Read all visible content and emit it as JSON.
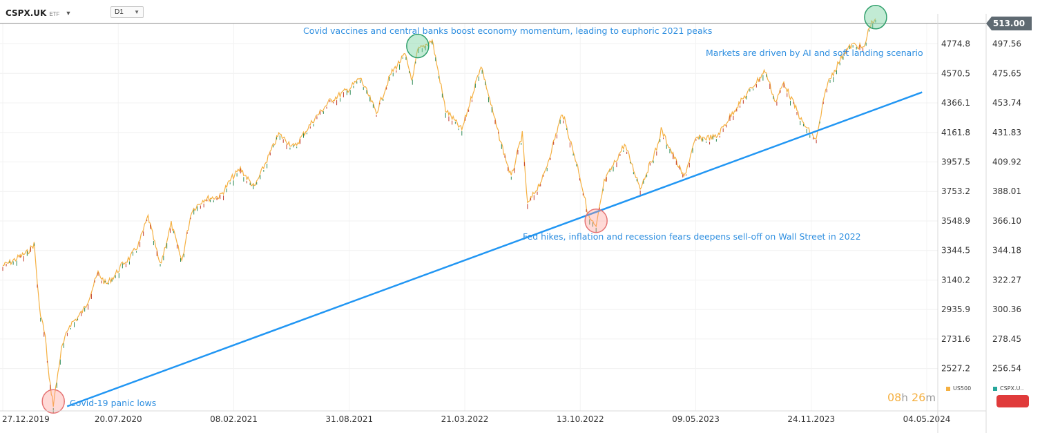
{
  "header": {
    "symbol": "CSPX.UK",
    "symbol_type": "ETF",
    "timeframe": "D1"
  },
  "price_tag": "513.00",
  "timer": {
    "hours": "08",
    "h_unit": "h",
    "minutes": "26",
    "m_unit": "m"
  },
  "legend": [
    {
      "name": "US500",
      "color": "#f5b041"
    },
    {
      "name": "CSPX.U..",
      "color": "#26a69a"
    }
  ],
  "annotations": {
    "peak_2021": "Covid vaccines and central banks boost economy momentum, leading to euphoric 2021 peaks",
    "ai_2023": "Markets are driven by AI and soft landing scenario",
    "selloff_2022": "Fed hikes, inflation and recession fears deepens sell-off on Wall Street in 2022",
    "covid_low": "Covid-19 panic lows"
  },
  "chart_data": {
    "type": "line",
    "x_tick_labels": [
      "27.12.2019",
      "20.07.2020",
      "08.02.2021",
      "31.08.2021",
      "21.03.2022",
      "13.10.2022",
      "09.05.2023",
      "24.11.2023",
      "04.05.2024"
    ],
    "left_axis_ticks": [
      "4774.8",
      "4570.5",
      "4366.1",
      "4161.8",
      "3957.5",
      "3753.2",
      "3548.9",
      "3344.5",
      "3140.2",
      "2935.9",
      "2731.6",
      "2527.2"
    ],
    "right_axis_ticks": [
      "497.56",
      "475.65",
      "453.74",
      "431.83",
      "409.92",
      "388.01",
      "366.10",
      "344.18",
      "322.27",
      "300.36",
      "278.45",
      "256.54"
    ],
    "left_axis_range": [
      2322.9,
      4979.1
    ],
    "series": [
      {
        "name": "US500",
        "color": "#f5b041",
        "points": [
          [
            "2019-12-27",
            3240
          ],
          [
            "2020-01-10",
            3265
          ],
          [
            "2020-01-24",
            3300
          ],
          [
            "2020-02-07",
            3330
          ],
          [
            "2020-02-19",
            3390
          ],
          [
            "2020-02-28",
            2950
          ],
          [
            "2020-03-09",
            2750
          ],
          [
            "2020-03-16",
            2450
          ],
          [
            "2020-03-23",
            2280
          ],
          [
            "2020-04-06",
            2660
          ],
          [
            "2020-04-20",
            2830
          ],
          [
            "2020-05-04",
            2880
          ],
          [
            "2020-05-18",
            2960
          ],
          [
            "2020-06-08",
            3190
          ],
          [
            "2020-06-22",
            3110
          ],
          [
            "2020-07-06",
            3170
          ],
          [
            "2020-07-20",
            3250
          ],
          [
            "2020-08-03",
            3300
          ],
          [
            "2020-08-17",
            3390
          ],
          [
            "2020-09-02",
            3580
          ],
          [
            "2020-09-23",
            3240
          ],
          [
            "2020-10-12",
            3530
          ],
          [
            "2020-10-30",
            3270
          ],
          [
            "2020-11-16",
            3620
          ],
          [
            "2020-12-07",
            3700
          ],
          [
            "2021-01-04",
            3720
          ],
          [
            "2021-01-25",
            3850
          ],
          [
            "2021-02-08",
            3910
          ],
          [
            "2021-03-04",
            3780
          ],
          [
            "2021-03-22",
            3940
          ],
          [
            "2021-04-15",
            4150
          ],
          [
            "2021-05-12",
            4060
          ],
          [
            "2021-06-14",
            4250
          ],
          [
            "2021-07-12",
            4380
          ],
          [
            "2021-08-16",
            4470
          ],
          [
            "2021-09-02",
            4540
          ],
          [
            "2021-09-30",
            4300
          ],
          [
            "2021-10-25",
            4570
          ],
          [
            "2021-11-18",
            4700
          ],
          [
            "2021-12-01",
            4520
          ],
          [
            "2021-12-10",
            4730
          ],
          [
            "2022-01-04",
            4800
          ],
          [
            "2022-01-27",
            4320
          ],
          [
            "2022-02-24",
            4180
          ],
          [
            "2022-03-29",
            4630
          ],
          [
            "2022-04-26",
            4180
          ],
          [
            "2022-05-20",
            3850
          ],
          [
            "2022-06-08",
            4150
          ],
          [
            "2022-06-17",
            3660
          ],
          [
            "2022-07-15",
            3860
          ],
          [
            "2022-08-16",
            4300
          ],
          [
            "2022-09-13",
            3900
          ],
          [
            "2022-09-30",
            3580
          ],
          [
            "2022-10-13",
            3500
          ],
          [
            "2022-10-27",
            3820
          ],
          [
            "2022-12-01",
            4080
          ],
          [
            "2022-12-28",
            3780
          ],
          [
            "2023-01-27",
            4070
          ],
          [
            "2023-02-02",
            4180
          ],
          [
            "2023-03-13",
            3850
          ],
          [
            "2023-04-03",
            4120
          ],
          [
            "2023-05-08",
            4130
          ],
          [
            "2023-06-12",
            4340
          ],
          [
            "2023-07-31",
            4590
          ],
          [
            "2023-08-18",
            4370
          ],
          [
            "2023-09-01",
            4510
          ],
          [
            "2023-10-03",
            4230
          ],
          [
            "2023-10-27",
            4110
          ],
          [
            "2023-11-14",
            4490
          ],
          [
            "2023-12-14",
            4720
          ],
          [
            "2023-12-29",
            4770
          ],
          [
            "2024-01-08",
            4760
          ],
          [
            "2024-01-17",
            4740
          ],
          [
            "2024-01-26",
            4890
          ],
          [
            "2024-02-01",
            4930
          ],
          [
            "2024-02-06",
            4950
          ]
        ]
      }
    ],
    "trendline": {
      "from": [
        "2020-03-23",
        2280
      ],
      "to": [
        "2024-04-26",
        4440
      ],
      "color": "#2196f3"
    },
    "highlights": [
      {
        "date": "2020-03-23",
        "value": 2300,
        "color": "red"
      },
      {
        "date": "2021-12-10",
        "value": 4760,
        "color": "green"
      },
      {
        "date": "2022-10-13",
        "value": 3550,
        "color": "red"
      },
      {
        "date": "2024-02-06",
        "value": 4960,
        "color": "green"
      }
    ],
    "last_price_line": 513.0,
    "grid": true
  }
}
